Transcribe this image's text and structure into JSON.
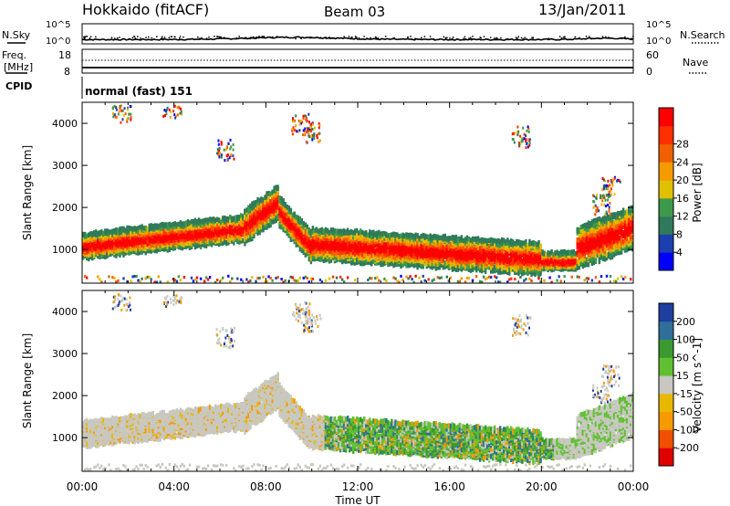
{
  "header": {
    "station": "Hokkaido (fitACF)",
    "beam": "Beam 03",
    "date": "13/Jan/2011"
  },
  "top_panels": {
    "nsky_label": "N.Sky",
    "nsearch_label": "N.Search",
    "nsky_ticks": [
      "10^5",
      "10^0"
    ],
    "nsearch_ticks": [
      "10^5",
      "10^0"
    ],
    "freq_label_1": "Freq.",
    "freq_label_2": "[MHz]",
    "freq_ticks": [
      "18",
      "8"
    ],
    "nave_label": "Nave",
    "nave_ticks": [
      "60",
      "0"
    ],
    "cpid_label": "CPID",
    "cpid_value": "normal (fast) 151"
  },
  "colors": {
    "power": [
      "#0000ff",
      "#1c3fb0",
      "#2f7a5a",
      "#3c9a4a",
      "#e0c000",
      "#f59a00",
      "#f06000",
      "#ff3000",
      "#ff0000"
    ],
    "velocity": [
      "#e00000",
      "#f05000",
      "#f59a00",
      "#e8b800",
      "#c8c8c0",
      "#5fc030",
      "#3a9a30",
      "#2f6f9a",
      "#1f3fa0"
    ]
  },
  "chart_data": [
    {
      "type": "heatmap",
      "title": "",
      "xlabel": "",
      "ylabel": "Slant Range [km]",
      "x_ticks": [
        "00:00",
        "04:00",
        "08:00",
        "12:00",
        "16:00",
        "20:00",
        "00:00"
      ],
      "y_ticks": [
        1000,
        2000,
        3000,
        4000
      ],
      "ylim": [
        200,
        4500
      ],
      "xlim_hours": [
        0,
        24
      ],
      "colorbar": {
        "label": "Power [dB]",
        "ticks": [
          "4",
          "8",
          "12",
          "16",
          "20",
          "24",
          "28"
        ],
        "range": [
          0,
          32
        ]
      }
    },
    {
      "type": "heatmap",
      "title": "",
      "xlabel": "Time UT",
      "ylabel": "Slant Range [km]",
      "x_ticks": [
        "00:00",
        "04:00",
        "08:00",
        "12:00",
        "16:00",
        "20:00",
        "00:00"
      ],
      "y_ticks": [
        1000,
        2000,
        3000,
        4000
      ],
      "ylim": [
        200,
        4500
      ],
      "xlim_hours": [
        0,
        24
      ],
      "colorbar": {
        "label": "Velocity [m s^-1]",
        "ticks": [
          "200",
          "100",
          "50",
          "15",
          "-15",
          "-50",
          "-100",
          "-200"
        ]
      }
    }
  ]
}
